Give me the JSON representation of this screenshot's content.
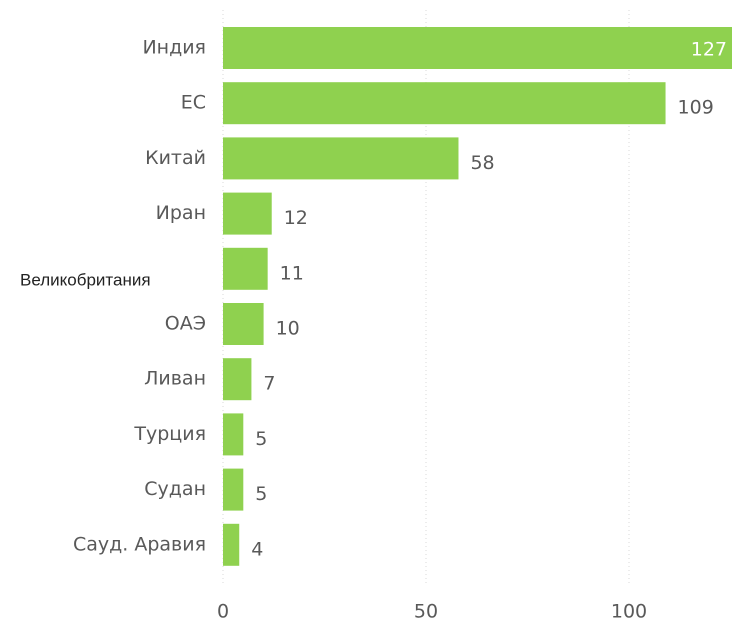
{
  "chart_data": {
    "type": "barh",
    "categories": [
      "Индия",
      "ЕС",
      "Китай",
      "Иран",
      "Великобритания",
      "ОАЭ",
      "Ливан",
      "Турция",
      "Судан",
      "Сауд. Аравия"
    ],
    "values": [
      127,
      109,
      58,
      12,
      11,
      10,
      7,
      5,
      5,
      4
    ],
    "color": "#8fd14f",
    "xlim": [
      0,
      125
    ],
    "xticks": [
      0,
      50,
      100
    ],
    "grid": true
  }
}
